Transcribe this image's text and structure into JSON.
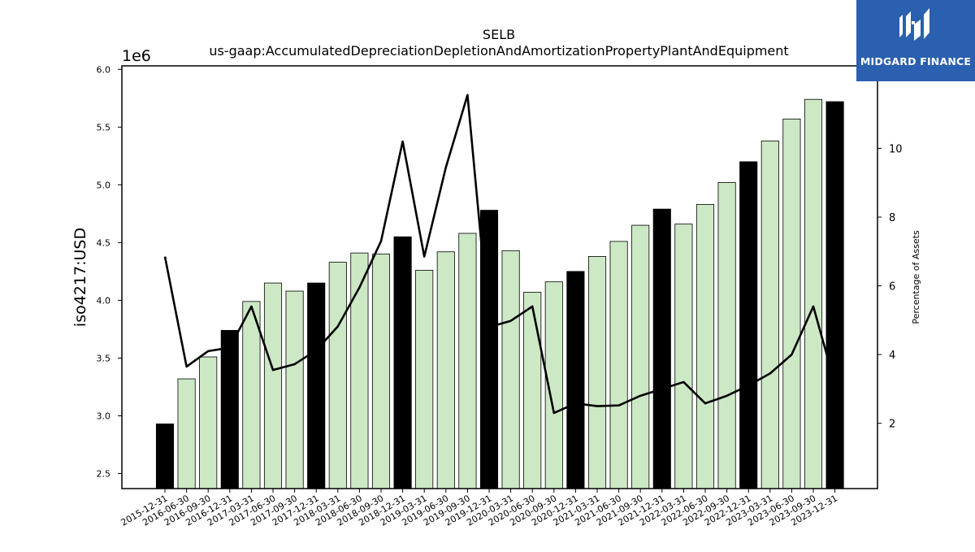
{
  "chart_data": {
    "type": "bar",
    "title": "SELB",
    "subtitle": "us-gaap:AccumulatedDepreciationDepletionAndAmortizationPropertyPlantAndEquipment",
    "ylabel": "iso4217:USD",
    "y_offset_label": "1e6",
    "y2label": "Percentage of Assets",
    "ylim": [
      2.37,
      6.03
    ],
    "y2lim": [
      0.1,
      12.4
    ],
    "yticks": [
      "2.5",
      "3.0",
      "3.5",
      "4.0",
      "4.5",
      "5.0",
      "5.5",
      "6.0"
    ],
    "y2ticks": [
      "2",
      "4",
      "6",
      "8",
      "10"
    ],
    "categories": [
      "2015-12-31",
      "2016-06-30",
      "2016-09-30",
      "2016-12-31",
      "2017-03-31",
      "2017-06-30",
      "2017-09-30",
      "2017-12-31",
      "2018-03-31",
      "2018-06-30",
      "2018-09-30",
      "2018-12-31",
      "2019-03-31",
      "2019-06-30",
      "2019-09-30",
      "2019-12-31",
      "2020-03-31",
      "2020-06-30",
      "2020-09-30",
      "2020-12-31",
      "2021-03-31",
      "2021-06-30",
      "2021-09-30",
      "2021-12-31",
      "2022-03-31",
      "2022-06-30",
      "2022-09-30",
      "2022-12-31",
      "2023-03-31",
      "2023-06-30",
      "2023-09-30",
      "2023-12-31"
    ],
    "series": [
      {
        "axis": "left",
        "kind": "bar",
        "values": [
          2.93,
          3.32,
          3.51,
          3.74,
          3.99,
          4.15,
          4.08,
          4.15,
          4.33,
          4.41,
          4.4,
          4.55,
          4.26,
          4.42,
          4.58,
          4.78,
          4.43,
          4.07,
          4.16,
          4.25,
          4.38,
          4.51,
          4.65,
          4.79,
          4.66,
          4.83,
          5.02,
          5.2,
          5.38,
          5.57,
          5.74,
          5.72
        ],
        "annual": [
          true,
          false,
          false,
          true,
          false,
          false,
          false,
          true,
          false,
          false,
          false,
          true,
          false,
          false,
          false,
          true,
          false,
          false,
          false,
          true,
          false,
          false,
          false,
          true,
          false,
          false,
          false,
          true,
          false,
          false,
          false,
          true
        ],
        "color_annual": "#000000",
        "color_quarterly": "#cde8c5"
      },
      {
        "axis": "right",
        "kind": "line",
        "values": [
          6.85,
          3.65,
          4.1,
          4.2,
          5.4,
          3.55,
          3.72,
          4.12,
          4.82,
          5.95,
          7.3,
          10.2,
          6.85,
          9.45,
          11.55,
          4.8,
          4.98,
          5.4,
          2.3,
          2.58,
          2.5,
          2.52,
          2.8,
          3.0,
          3.2,
          2.58,
          2.8,
          3.1,
          3.45,
          4.0,
          5.4,
          3.15
        ],
        "color": "#000000"
      }
    ],
    "grid": false,
    "legend": "none"
  },
  "branding": {
    "logo_text": "MIDGARD FINANCE",
    "logo_bg": "#2b5fb0",
    "logo_fg": "#ffffff"
  }
}
